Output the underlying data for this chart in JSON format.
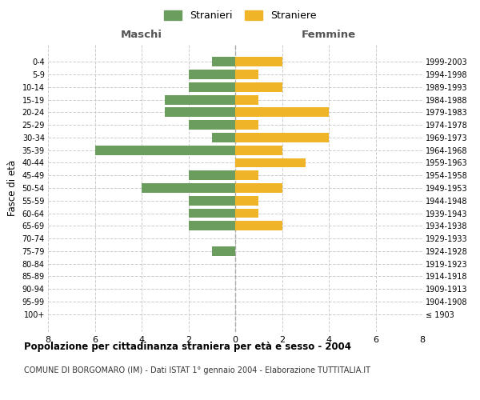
{
  "age_groups": [
    "100+",
    "95-99",
    "90-94",
    "85-89",
    "80-84",
    "75-79",
    "70-74",
    "65-69",
    "60-64",
    "55-59",
    "50-54",
    "45-49",
    "40-44",
    "35-39",
    "30-34",
    "25-29",
    "20-24",
    "15-19",
    "10-14",
    "5-9",
    "0-4"
  ],
  "birth_years": [
    "≤ 1903",
    "1904-1908",
    "1909-1913",
    "1914-1918",
    "1919-1923",
    "1924-1928",
    "1929-1933",
    "1934-1938",
    "1939-1943",
    "1944-1948",
    "1949-1953",
    "1954-1958",
    "1959-1963",
    "1964-1968",
    "1969-1973",
    "1974-1978",
    "1979-1983",
    "1984-1988",
    "1989-1993",
    "1994-1998",
    "1999-2003"
  ],
  "maschi": [
    0,
    0,
    0,
    0,
    0,
    1,
    0,
    2,
    2,
    2,
    4,
    2,
    0,
    6,
    1,
    2,
    3,
    3,
    2,
    2,
    1
  ],
  "femmine": [
    0,
    0,
    0,
    0,
    0,
    0,
    0,
    2,
    1,
    1,
    2,
    1,
    3,
    2,
    4,
    1,
    4,
    1,
    2,
    1,
    2
  ],
  "maschi_color": "#6b9e5e",
  "femmine_color": "#f0b429",
  "background_color": "#ffffff",
  "grid_color": "#cccccc",
  "title": "Popolazione per cittadinanza straniera per età e sesso - 2004",
  "subtitle": "COMUNE DI BORGOMARO (IM) - Dati ISTAT 1° gennaio 2004 - Elaborazione TUTTITALIA.IT",
  "ylabel_left": "Fasce di età",
  "xlabel_left": "Maschi",
  "xlabel_right": "Femmine",
  "legend_stranieri": "Stranieri",
  "legend_straniere": "Straniere",
  "xlim": 8,
  "bar_height": 0.75
}
